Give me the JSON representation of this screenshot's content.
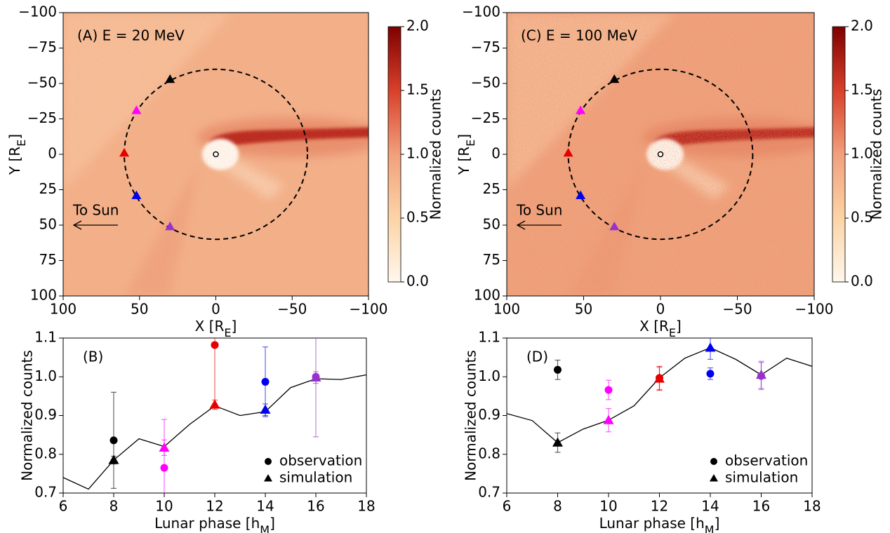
{
  "chart_data": [
    {
      "type": "heatmap",
      "panel_label": "(A) E = 20 MeV",
      "x_label": {
        "text": "X [R",
        "sub": "E",
        "end": "]"
      },
      "y_label": {
        "text": "Y [R",
        "sub": "E",
        "end": "]"
      },
      "xlim": [
        100,
        -100
      ],
      "xticks": [
        100,
        50,
        0,
        {
          "value": -50,
          "label": "−50"
        },
        {
          "value": -100,
          "label": "−100"
        }
      ],
      "ylim": [
        100,
        -100
      ],
      "yticks": [
        {
          "value": -100,
          "label": "−100"
        },
        {
          "value": -75,
          "label": "−75"
        },
        {
          "value": -50,
          "label": "−50"
        },
        {
          "value": -25,
          "label": "−25"
        },
        0,
        25,
        50,
        75,
        100
      ],
      "orbit_radius": 60,
      "markers": {
        "x": [
          30,
          52,
          60,
          52,
          30
        ],
        "values": [
          -52,
          -30,
          0,
          30,
          52
        ],
        "colors": [
          "#000000",
          "#ff00ff",
          "#e60000",
          "#0000ee",
          "#9932cc"
        ]
      },
      "arrow_label": "To Sun",
      "colorbar": {
        "label": "Normalized counts",
        "lim": [
          0,
          2
        ],
        "ticks": [
          {
            "value": 0,
            "label": "0.0"
          },
          0.5,
          {
            "value": 1,
            "label": "1.0"
          },
          1.5,
          {
            "value": 2,
            "label": "2.0"
          }
        ]
      }
    },
    {
      "type": "line",
      "panel_label": "(B)",
      "x_label": {
        "text": "Lunar phase [h",
        "sub": "M",
        "end": "]"
      },
      "y_label": "Normalized counts",
      "xlim": [
        6,
        18
      ],
      "xticks": [
        6,
        8,
        10,
        12,
        14,
        16,
        18
      ],
      "ylim": [
        0.7,
        1.1
      ],
      "yticks": [
        0.7,
        0.8,
        0.9,
        {
          "value": 1,
          "label": "1.0"
        },
        1.1
      ],
      "legend": "lower right",
      "series": [
        {
          "color": "#000000",
          "x": [
            6,
            7,
            8,
            9,
            10,
            11,
            12,
            13,
            14,
            15,
            16,
            17,
            18
          ],
          "values": [
            0.74,
            0.71,
            0.785,
            0.84,
            0.82,
            0.877,
            0.925,
            0.9,
            0.91,
            0.972,
            0.995,
            0.993,
            1.005
          ]
        },
        {
          "name": "observation",
          "marker": "circle",
          "color": "#000000",
          "point_colors": [
            "#000000",
            "#ff00ff",
            "#e60000",
            "#0000ee",
            "#9932cc"
          ],
          "x": [
            8,
            10,
            12,
            14,
            16
          ],
          "values": [
            0.836,
            0.765,
            1.082,
            0.987,
            1.0
          ],
          "errors": [
            0.124,
            0.125,
            0.16,
            0.09,
            0.155
          ]
        },
        {
          "name": "simulation",
          "marker": "triangle",
          "color": "#000000",
          "point_colors": [
            "#000000",
            "#ff00ff",
            "#e60000",
            "#0000ee",
            "#9932cc"
          ],
          "x": [
            8,
            10,
            12,
            14,
            16
          ],
          "values": [
            0.785,
            0.817,
            0.928,
            0.915,
            0.998
          ],
          "errors": [
            0.01,
            0.02,
            0.012,
            0.015,
            0.015
          ]
        }
      ]
    },
    {
      "type": "heatmap",
      "panel_label": "(C) E = 100 MeV",
      "x_label": {
        "text": "X [R",
        "sub": "E",
        "end": "]"
      },
      "y_label": {
        "text": "Y [R",
        "sub": "E",
        "end": "]"
      },
      "xlim": [
        100,
        -100
      ],
      "xticks": [
        100,
        50,
        0,
        {
          "value": -50,
          "label": "−50"
        },
        {
          "value": -100,
          "label": "−100"
        }
      ],
      "ylim": [
        100,
        -100
      ],
      "yticks": [
        {
          "value": -100,
          "label": "−100"
        },
        {
          "value": -75,
          "label": "−75"
        },
        {
          "value": -50,
          "label": "−50"
        },
        {
          "value": -25,
          "label": "−25"
        },
        0,
        25,
        50,
        75,
        100
      ],
      "orbit_radius": 60,
      "markers": {
        "x": [
          30,
          52,
          60,
          52,
          30
        ],
        "values": [
          -52,
          -30,
          0,
          30,
          52
        ],
        "colors": [
          "#000000",
          "#ff00ff",
          "#e60000",
          "#0000ee",
          "#9932cc"
        ]
      },
      "arrow_label": "To Sun",
      "colorbar": {
        "label": "Normalized counts",
        "lim": [
          0,
          2
        ],
        "ticks": [
          {
            "value": 0,
            "label": "0.0"
          },
          0.5,
          {
            "value": 1,
            "label": "1.0"
          },
          1.5,
          {
            "value": 2,
            "label": "2.0"
          }
        ]
      }
    },
    {
      "type": "line",
      "panel_label": "(D)",
      "x_label": {
        "text": "Lunar phase [h",
        "sub": "M",
        "end": "]"
      },
      "y_label": "Normalized counts",
      "xlim": [
        6,
        18
      ],
      "xticks": [
        6,
        8,
        10,
        12,
        14,
        16,
        18
      ],
      "ylim": [
        0.7,
        1.1
      ],
      "yticks": [
        0.7,
        0.8,
        0.9,
        {
          "value": 1,
          "label": "1.0"
        },
        1.1
      ],
      "legend": "lower right",
      "series": [
        {
          "color": "#000000",
          "x": [
            6,
            7,
            8,
            9,
            10,
            11,
            12,
            13,
            14,
            15,
            16,
            17,
            18
          ],
          "values": [
            0.905,
            0.887,
            0.83,
            0.865,
            0.888,
            0.925,
            0.997,
            1.048,
            1.075,
            1.045,
            1.005,
            1.048,
            1.027
          ]
        },
        {
          "name": "observation",
          "marker": "circle",
          "color": "#000000",
          "point_colors": [
            "#000000",
            "#ff00ff",
            "#e60000",
            "#0000ee",
            "#9932cc"
          ],
          "x": [
            8,
            10,
            12,
            14,
            16
          ],
          "values": [
            1.018,
            0.966,
            0.997,
            1.008,
            1.002
          ],
          "errors": [
            0.025,
            0.025,
            0.03,
            0.015,
            0.035
          ]
        },
        {
          "name": "simulation",
          "marker": "triangle",
          "color": "#000000",
          "point_colors": [
            "#000000",
            "#ff00ff",
            "#e60000",
            "#0000ee",
            "#9932cc"
          ],
          "x": [
            8,
            10,
            12,
            14,
            16
          ],
          "values": [
            0.83,
            0.888,
            0.995,
            1.075,
            1.005
          ],
          "errors": [
            0.025,
            0.03,
            0.03,
            0.03,
            0.035
          ]
        }
      ]
    }
  ]
}
